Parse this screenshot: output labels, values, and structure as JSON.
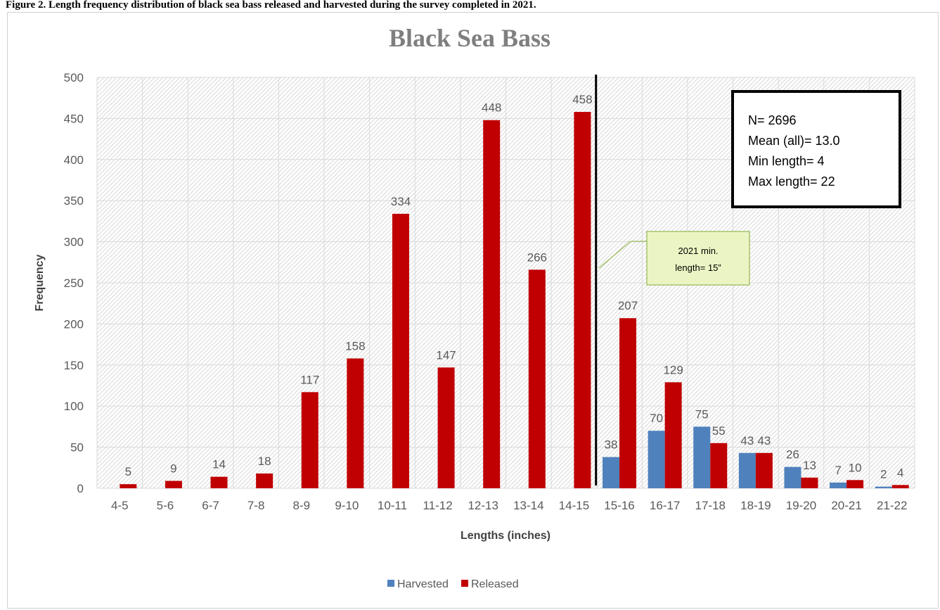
{
  "figure_caption": "Figure 2. Length frequency distribution of black sea bass released and harvested during the survey completed in 2021.",
  "chart_data": {
    "type": "bar",
    "title": "Black Sea Bass",
    "xlabel": "Lengths (inches)",
    "ylabel": "Frequency",
    "ylim": [
      0,
      500
    ],
    "yticks": [
      0,
      50,
      100,
      150,
      200,
      250,
      300,
      350,
      400,
      450,
      500
    ],
    "grid": true,
    "legend_position": "bottom",
    "categories": [
      "4-5",
      "5-6",
      "6-7",
      "7-8",
      "8-9",
      "9-10",
      "10-11",
      "11-12",
      "12-13",
      "13-14",
      "14-15",
      "15-16",
      "16-17",
      "17-18",
      "18-19",
      "19-20",
      "20-21",
      "21-22"
    ],
    "series": [
      {
        "name": "Harvested",
        "color": "#4f81bd",
        "values": [
          null,
          null,
          null,
          null,
          null,
          null,
          null,
          null,
          null,
          null,
          null,
          38,
          70,
          75,
          43,
          26,
          7,
          2
        ],
        "labels": [
          "",
          "",
          "",
          "",
          "",
          "",
          "",
          "",
          "",
          "",
          "",
          "38",
          "70",
          "75",
          "43",
          "26",
          "7",
          "2"
        ]
      },
      {
        "name": "Released",
        "color": "#c00000",
        "values": [
          5,
          9,
          14,
          18,
          117,
          158,
          334,
          147,
          448,
          266,
          458,
          207,
          129,
          55,
          43,
          13,
          10,
          4
        ],
        "labels": [
          "5",
          "9",
          "14",
          "18",
          "117",
          "158",
          "334",
          "147",
          "448",
          "266",
          "458",
          "207",
          "129",
          "55",
          "43",
          "13",
          "10",
          "4"
        ]
      }
    ],
    "reference_line": {
      "between_categories": [
        "14-15",
        "15-16"
      ],
      "color": "#000000"
    },
    "stats_box": [
      "N= 2696",
      "Mean (all)= 13.0",
      "Min length= 4",
      "Max length= 22"
    ],
    "callout": {
      "lines": [
        "2021 min.",
        "length= 15”"
      ],
      "fill": "#ebf5c4",
      "border": "#9bbb59"
    }
  }
}
